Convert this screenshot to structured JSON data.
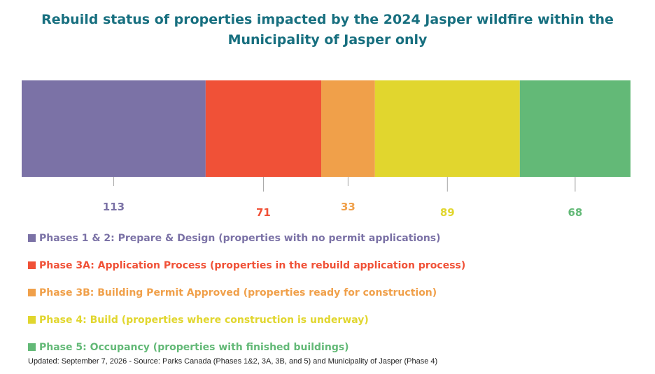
{
  "title_line1": "Rebuild status of properties impacted by the 2024 Jasper wildfire within the",
  "title_line2": "Municipality of Jasper only",
  "chart_data": {
    "type": "bar",
    "orientation": "horizontal-stacked",
    "title": "Rebuild status of properties impacted by the 2024 Jasper wildfire within the Municipality of Jasper only",
    "categories": [
      "Phases 1 & 2",
      "Phase 3A",
      "Phase 3B",
      "Phase 4",
      "Phase 5"
    ],
    "series": [
      {
        "name": "Phases 1 & 2: Prepare & Design (properties with no permit applications)",
        "value": 113,
        "color": "#7b72a6"
      },
      {
        "name": "Phase 3A: Application Process (properties in the rebuild application process)",
        "value": 71,
        "color": "#f05137"
      },
      {
        "name": "Phase 3B: Building Permit Approved (properties ready for construction)",
        "value": 33,
        "color": "#f0a04a"
      },
      {
        "name": "Phase 4: Build (properties where construction is underway)",
        "value": 89,
        "color": "#e1d62e"
      },
      {
        "name": "Phase 5: Occupancy (properties with finished buildings)",
        "value": 68,
        "color": "#63b977"
      }
    ],
    "legend_position": "bottom-left",
    "grid": false
  },
  "footer": "Updated: September 7, 2026  -  Source: Parks Canada (Phases 1&2, 3A, 3B, and 5) and Municipality of Jasper (Phase 4)"
}
